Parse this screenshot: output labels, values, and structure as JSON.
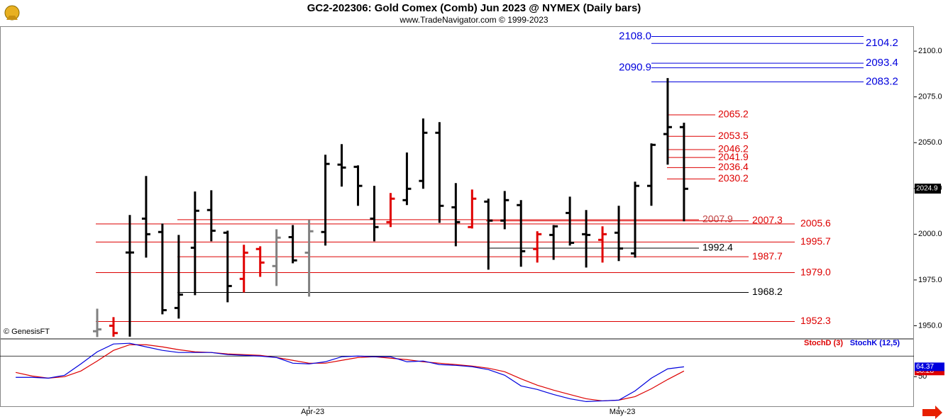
{
  "chart_data": [
    {
      "type": "ohlc",
      "title": "GC2-202306:  Gold Comex (Comb) Jun 2023 @ NYMEX  (Daily bars)",
      "subtitle": "www.TradeNavigator.com © 1999-2023",
      "source": "© GenesisFT",
      "categories": [
        null,
        null,
        null,
        null,
        null,
        null,
        null,
        null,
        null,
        null,
        null,
        null,
        null,
        null,
        null,
        null,
        null,
        null,
        "Apr-23",
        null,
        null,
        null,
        null,
        null,
        null,
        null,
        null,
        null,
        null,
        null,
        null,
        null,
        null,
        null,
        null,
        null,
        null,
        "May-23",
        null,
        null,
        null,
        null
      ],
      "open": [
        null,
        null,
        null,
        null,
        null,
        1947,
        1950,
        1990,
        2008.5,
        2001.2,
        1959.7,
        1992.6,
        2013.2,
        2000.8,
        1975.6,
        1991.9,
        1982.6,
        1998.4,
        1989.9,
        2001.2,
        2038,
        2036.8,
        2008.5,
        2006.6,
        2018.6,
        2029.1,
        2055.4,
        2014.7,
        2003.9,
        2017.8,
        2007.4,
        2015.9,
        1991.9,
        1999.6,
        2011.6,
        2000,
        1996.9,
        2000.8,
        1989.5,
        2026.4,
        2054.7,
        2058.5
      ],
      "high": [
        null,
        null,
        null,
        null,
        null,
        1959.3,
        1954.7,
        2010.5,
        2031.8,
        2005.8,
        1999.6,
        2023.3,
        2024,
        2001.9,
        1994.2,
        1993.4,
        2002.7,
        2005,
        2007.8,
        2043.4,
        2049.2,
        2037.6,
        2026.4,
        2022.5,
        2044.6,
        2063.2,
        2061.2,
        2027.9,
        2024.4,
        2019.4,
        2023.6,
        2018.6,
        2001.6,
        2005,
        2020.5,
        2013.2,
        2004.3,
        2015.5,
        2028.7,
        2049.6,
        2085.3,
        2060.9
      ],
      "low": [
        null,
        null,
        null,
        null,
        null,
        1943.8,
        1944,
        1944,
        1987.2,
        1956.2,
        1953.9,
        1966.7,
        1996.1,
        1962.8,
        1968.2,
        1976.7,
        1971.7,
        1984.1,
        1965.9,
        1993.8,
        2026,
        2015.5,
        1996.1,
        2003.9,
        2015.9,
        2024.8,
        2006.2,
        1993.4,
        2003.1,
        1980.6,
        2002.7,
        1982.2,
        1984.5,
        1986,
        1993.8,
        1981.8,
        1984.5,
        1985.3,
        1987.2,
        2015.5,
        2038,
        2007
      ],
      "close": [
        null,
        null,
        null,
        null,
        null,
        1948,
        1946,
        1990,
        2000,
        1958.5,
        1967,
        2012.8,
        2001.9,
        1971.7,
        1989.9,
        1984.5,
        1998.1,
        1985.7,
        2001.6,
        2038.4,
        2036.4,
        2026.4,
        2003.9,
        2019.4,
        2024.8,
        2055.4,
        2015.5,
        2006.6,
        2019.4,
        2007.4,
        2018.6,
        1990.7,
        2000,
        2004.3,
        1995.3,
        1999.6,
        2000,
        1992.2,
        2026.4,
        2048.8,
        2058.5,
        2024.8
      ],
      "bar_colors": [
        null,
        null,
        null,
        null,
        null,
        "#808080",
        "#e00000",
        "#000000",
        "#000000",
        "#000000",
        "#000000",
        "#000000",
        "#000000",
        "#000000",
        "#e00000",
        "#e00000",
        "#808080",
        "#000000",
        "#808080",
        "#000000",
        "#000000",
        "#000000",
        "#000000",
        "#e00000",
        "#000000",
        "#000000",
        "#000000",
        "#000000",
        "#e00000",
        "#000000",
        "#000000",
        "#000000",
        "#e00000",
        "#000000",
        "#000000",
        "#000000",
        "#e00000",
        "#000000",
        "#000000",
        "#000000",
        "#000000",
        "#000000"
      ],
      "ylim": [
        1943.2,
        2113.6
      ],
      "yticks": [
        {
          "value": 1950,
          "label": "1950.0"
        },
        {
          "value": 1975,
          "label": "1975.0"
        },
        {
          "value": 2000,
          "label": "2000.0"
        },
        {
          "value": 2025,
          "label": "2025.0"
        },
        {
          "value": 2050,
          "label": "2050.0"
        },
        {
          "value": 2075,
          "label": "2075.0"
        },
        {
          "value": 2100,
          "label": "2100.0"
        }
      ],
      "current_price": 2024.9,
      "levels": [
        {
          "value": 2108,
          "label": "2108.0",
          "color": "#0000dd"
        },
        {
          "value": 2104.2,
          "color": "#0000dd"
        },
        {
          "value": 2093.4,
          "color": "#0000dd"
        },
        {
          "value": 2090.9,
          "color": "#0000dd"
        },
        {
          "value": 2083.2,
          "color": "#0000dd"
        },
        {
          "value": 2065.2,
          "color": "#dd0000"
        },
        {
          "value": 2053.5,
          "color": "#dd0000"
        },
        {
          "value": 2046.2,
          "color": "#dd0000"
        },
        {
          "value": 2041.9,
          "color": "#dd0000"
        },
        {
          "value": 2036.4,
          "color": "#dd0000"
        },
        {
          "value": 2030.2,
          "color": "#dd0000"
        },
        {
          "value": 2007.9,
          "color": "#dd0000"
        },
        {
          "value": 2007.3,
          "color": "#dd0000"
        },
        {
          "value": 2005.6,
          "color": "#dd0000"
        },
        {
          "value": 1995.7,
          "color": "#dd0000"
        },
        {
          "value": 1992.4,
          "color": "#000000"
        },
        {
          "value": 1987.7,
          "color": "#dd0000"
        },
        {
          "value": 1979,
          "label": "1979.0",
          "color": "#dd0000"
        },
        {
          "value": 1968.2,
          "color": "#000000"
        },
        {
          "value": 1952.3,
          "color": "#dd0000"
        }
      ]
    },
    {
      "type": "line",
      "series": [
        {
          "name": "StochD (3)",
          "color": "#dd0000",
          "values": [
            56.2,
            51,
            47.9,
            50,
            58.3,
            72.8,
            88.3,
            96.5,
            96.5,
            93.4,
            89.3,
            86.2,
            85.2,
            83.1,
            82.1,
            81,
            77.9,
            73.8,
            69.6,
            69.6,
            73.8,
            77.9,
            79,
            76.9,
            74.8,
            71.7,
            69.6,
            67.6,
            65.5,
            62.4,
            57.2,
            46.9,
            37.6,
            30.4,
            24.1,
            17.9,
            14.8,
            15.9,
            21,
            32.4,
            45.9,
            58.28
          ]
        },
        {
          "name": "StochK (12,5)",
          "color": "#0000dd",
          "values": [
            49,
            49,
            47.9,
            52.1,
            68.6,
            86.2,
            97.6,
            98.6,
            93.4,
            88.3,
            85.2,
            85.2,
            85.2,
            82.1,
            81,
            80,
            77.9,
            69.6,
            68.6,
            71.7,
            79,
            80,
            79,
            79,
            71.7,
            72.8,
            67.6,
            66.5,
            64.5,
            60.3,
            52.1,
            36.6,
            31.4,
            24.1,
            17.9,
            13.8,
            14.8,
            15.9,
            29.3,
            47.9,
            61.4,
            64.37
          ]
        }
      ],
      "ylim": [
        7,
        105
      ],
      "yticks": [
        50
      ],
      "reference_line": 80
    }
  ]
}
